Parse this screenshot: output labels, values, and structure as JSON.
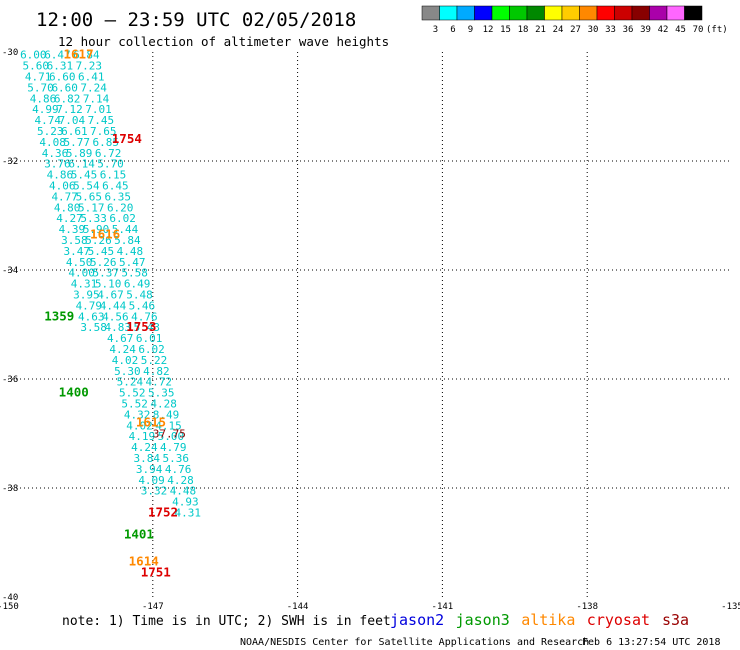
{
  "header": {
    "title": "12:00 – 23:59 UTC 02/05/2018",
    "subtitle": "12 hour collection of altimeter wave heights"
  },
  "colorbar": {
    "labels": [
      "3",
      "6",
      "9",
      "12",
      "15",
      "18",
      "21",
      "24",
      "27",
      "30",
      "33",
      "36",
      "39",
      "42",
      "45",
      "70"
    ],
    "unit": "(ft)",
    "colors": [
      "#888888",
      "#00ffff",
      "#00aaff",
      "#0000ff",
      "#00ff00",
      "#00c800",
      "#008800",
      "#ffff00",
      "#ffcc00",
      "#ff8800",
      "#ff0000",
      "#cc0000",
      "#880000",
      "#aa00aa",
      "#ff66ff",
      "#000000"
    ]
  },
  "footer": {
    "note": "note: 1) Time is in UTC; 2) SWH is in feet",
    "satellites": [
      {
        "name": "jason2",
        "color": "#0000dd"
      },
      {
        "name": "jason3",
        "color": "#009900"
      },
      {
        "name": "altika",
        "color": "#ff8800"
      },
      {
        "name": "cryosat",
        "color": "#dd0000"
      },
      {
        "name": "s3a",
        "color": "#990000"
      }
    ],
    "credit": "NOAA/NESDIS Center for Satellite Applications and Research",
    "timestamp": "Feb  6 13:27:54 UTC 2018"
  },
  "chart_data": {
    "type": "scatter",
    "xlim": [
      -150,
      -135
    ],
    "ylim": [
      -40,
      -30
    ],
    "x_ticks": [
      "-150",
      "-147",
      "-144",
      "-141",
      "-138",
      "-135"
    ],
    "y_ticks": [
      "-30",
      "-32",
      "-34",
      "-36",
      "-38",
      "-40"
    ],
    "grid": true,
    "series": [
      {
        "name": "cryosat",
        "color": "#00c8c8",
        "points": [
          [
            -148.65,
            -30.05,
            "6.84"
          ],
          [
            -148.6,
            -30.25,
            "7.23"
          ],
          [
            -148.55,
            -30.45,
            "6.41"
          ],
          [
            -148.5,
            -30.65,
            "7.24"
          ],
          [
            -148.45,
            -30.85,
            "7.14"
          ],
          [
            -148.4,
            -31.05,
            "7.01"
          ],
          [
            -148.35,
            -31.25,
            "7.45"
          ],
          [
            -148.3,
            -31.45,
            "7.65"
          ],
          [
            -148.25,
            -31.65,
            "6.85"
          ],
          [
            -148.2,
            -31.85,
            "6.72"
          ],
          [
            -148.15,
            -32.05,
            "5.70"
          ],
          [
            -148.1,
            -32.25,
            "6.15"
          ],
          [
            -148.05,
            -32.45,
            "6.45"
          ],
          [
            -148.0,
            -32.65,
            "6.35"
          ],
          [
            -147.95,
            -32.85,
            "6.20"
          ],
          [
            -147.9,
            -33.05,
            "6.02"
          ],
          [
            -147.85,
            -33.25,
            "5.44"
          ],
          [
            -147.8,
            -33.45,
            "5.84"
          ],
          [
            -147.75,
            -33.65,
            "4.48"
          ],
          [
            -147.7,
            -33.85,
            "5.47"
          ],
          [
            -147.65,
            -34.05,
            "5.58"
          ],
          [
            -147.6,
            -34.25,
            "6.49"
          ],
          [
            -147.55,
            -34.45,
            "5.48"
          ],
          [
            -147.5,
            -34.65,
            "5.46"
          ],
          [
            -147.45,
            -34.85,
            "4.76"
          ],
          [
            -147.4,
            -35.05,
            "5.43"
          ],
          [
            -147.35,
            -35.25,
            "6.01"
          ],
          [
            -147.3,
            -35.45,
            "6.02"
          ],
          [
            -147.25,
            -35.65,
            "5.22"
          ],
          [
            -147.2,
            -35.85,
            "4.82"
          ],
          [
            -147.15,
            -36.05,
            "4.72"
          ],
          [
            -147.1,
            -36.25,
            "5.35"
          ],
          [
            -147.05,
            -36.45,
            "4.28"
          ],
          [
            -147.0,
            -36.65,
            "8.49"
          ],
          [
            -146.95,
            -36.85,
            "4.15"
          ],
          [
            -146.9,
            -37.05,
            "5.00"
          ],
          [
            -146.85,
            -37.25,
            "4.79"
          ],
          [
            -146.8,
            -37.45,
            "5.36"
          ],
          [
            -146.75,
            -37.65,
            "4.76"
          ],
          [
            -146.7,
            -37.85,
            "4.28"
          ],
          [
            -146.65,
            -38.05,
            "4.48"
          ],
          [
            -146.6,
            -38.25,
            "4.93"
          ],
          [
            -146.55,
            -38.45,
            "4.31"
          ]
        ]
      },
      {
        "name": "altika",
        "color": "#00c8c8",
        "points": [
          [
            -149.25,
            -30.05,
            "6.47"
          ],
          [
            -149.2,
            -30.25,
            "6.31"
          ],
          [
            -149.15,
            -30.45,
            "6.60"
          ],
          [
            -149.1,
            -30.65,
            "6.60"
          ],
          [
            -149.05,
            -30.85,
            "6.82"
          ],
          [
            -149.0,
            -31.05,
            "7.12"
          ],
          [
            -148.95,
            -31.25,
            "7.04"
          ],
          [
            -148.9,
            -31.45,
            "6.61"
          ],
          [
            -148.85,
            -31.65,
            "5.77"
          ],
          [
            -148.8,
            -31.85,
            "5.89"
          ],
          [
            -148.75,
            -32.05,
            "6.14"
          ],
          [
            -148.7,
            -32.25,
            "5.45"
          ],
          [
            -148.65,
            -32.45,
            "5.54"
          ],
          [
            -148.6,
            -32.65,
            "5.65"
          ],
          [
            -148.55,
            -32.85,
            "5.17"
          ],
          [
            -148.5,
            -33.05,
            "5.33"
          ],
          [
            -148.45,
            -33.25,
            "5.90"
          ],
          [
            -148.4,
            -33.45,
            "5.26"
          ],
          [
            -148.35,
            -33.65,
            "5.45"
          ],
          [
            -148.3,
            -33.85,
            "5.26"
          ],
          [
            -148.25,
            -34.05,
            "5.37"
          ],
          [
            -148.2,
            -34.25,
            "5.10"
          ],
          [
            -148.15,
            -34.45,
            "4.67"
          ],
          [
            -148.1,
            -34.65,
            "4.44"
          ],
          [
            -148.05,
            -34.85,
            "4.56"
          ],
          [
            -148.0,
            -35.05,
            "4.83"
          ],
          [
            -147.95,
            -35.25,
            "4.67"
          ],
          [
            -147.9,
            -35.45,
            "4.24"
          ],
          [
            -147.85,
            -35.65,
            "4.02"
          ],
          [
            -147.8,
            -35.85,
            "5.30"
          ],
          [
            -147.75,
            -36.05,
            "5.24"
          ],
          [
            -147.7,
            -36.25,
            "5.52"
          ],
          [
            -147.65,
            -36.45,
            "5.52"
          ],
          [
            -147.6,
            -36.65,
            "4.32"
          ],
          [
            -147.55,
            -36.85,
            "4.02"
          ],
          [
            -147.5,
            -37.05,
            "4.19"
          ],
          [
            -147.45,
            -37.25,
            "4.24"
          ],
          [
            -147.4,
            -37.45,
            "3.84"
          ],
          [
            -147.35,
            -37.65,
            "3.94"
          ],
          [
            -147.3,
            -37.85,
            "4.09"
          ],
          [
            -147.25,
            -38.05,
            "3.32"
          ]
        ]
      },
      {
        "name": "jason3",
        "color": "#00c8c8",
        "points": [
          [
            -149.75,
            -30.05,
            "6.00"
          ],
          [
            -149.7,
            -30.25,
            "5.60"
          ],
          [
            -149.65,
            -30.45,
            "4.71"
          ],
          [
            -149.6,
            -30.65,
            "5.70"
          ],
          [
            -149.55,
            -30.85,
            "4.86"
          ],
          [
            -149.5,
            -31.05,
            "4.99"
          ],
          [
            -149.45,
            -31.25,
            "4.74"
          ],
          [
            -149.4,
            -31.45,
            "5.23"
          ],
          [
            -149.35,
            -31.65,
            "4.08"
          ],
          [
            -149.3,
            -31.85,
            "4.36"
          ],
          [
            -149.25,
            -32.05,
            "3.76"
          ],
          [
            -149.2,
            -32.25,
            "4.86"
          ],
          [
            -149.15,
            -32.45,
            "4.06"
          ],
          [
            -149.1,
            -32.65,
            "4.77"
          ],
          [
            -149.05,
            -32.85,
            "4.80"
          ],
          [
            -149.0,
            -33.05,
            "4.27"
          ],
          [
            -148.95,
            -33.25,
            "4.39"
          ],
          [
            -148.9,
            -33.45,
            "3.58"
          ],
          [
            -148.85,
            -33.65,
            "3.47"
          ],
          [
            -148.8,
            -33.85,
            "4.50"
          ],
          [
            -148.75,
            -34.05,
            "4.00"
          ],
          [
            -148.7,
            -34.25,
            "4.31"
          ],
          [
            -148.65,
            -34.45,
            "3.95"
          ],
          [
            -148.6,
            -34.65,
            "4.79"
          ],
          [
            -148.55,
            -34.85,
            "4.63"
          ],
          [
            -148.5,
            -35.05,
            "3.58"
          ]
        ]
      }
    ],
    "special_points": [
      {
        "x": -147.0,
        "y": -37.0,
        "label": "37.75",
        "color": "#880000"
      }
    ],
    "pass_labels": [
      {
        "x": -148.85,
        "y": -30.05,
        "label": "1617",
        "color": "#ff8800"
      },
      {
        "x": -147.85,
        "y": -31.6,
        "label": "1754",
        "color": "#dd0000"
      },
      {
        "x": -148.3,
        "y": -33.35,
        "label": "1616",
        "color": "#ff8800"
      },
      {
        "x": -149.25,
        "y": -34.85,
        "label": "1359",
        "color": "#009900"
      },
      {
        "x": -147.55,
        "y": -35.05,
        "label": "1753",
        "color": "#dd0000"
      },
      {
        "x": -148.95,
        "y": -36.25,
        "label": "1400",
        "color": "#009900"
      },
      {
        "x": -147.35,
        "y": -36.8,
        "label": "1615",
        "color": "#ff8800"
      },
      {
        "x": -147.1,
        "y": -38.45,
        "label": "1752",
        "color": "#dd0000"
      },
      {
        "x": -147.6,
        "y": -38.85,
        "label": "1401",
        "color": "#009900"
      },
      {
        "x": -147.5,
        "y": -39.35,
        "label": "1614",
        "color": "#ff8800"
      },
      {
        "x": -147.25,
        "y": -39.55,
        "label": "1751",
        "color": "#dd0000"
      }
    ]
  }
}
